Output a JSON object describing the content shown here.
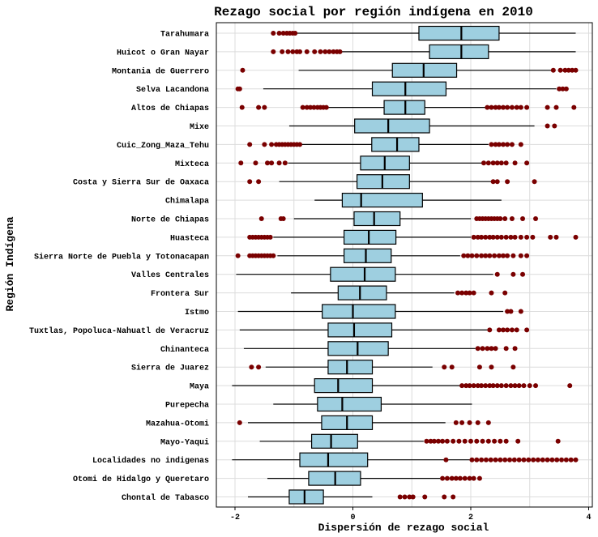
{
  "chart_data": {
    "type": "boxplot",
    "orientation": "horizontal",
    "title": "Rezago social por región indígena en 2010",
    "xlabel": "Dispersión de rezago social",
    "ylabel": "Región Indígena",
    "xlim": [
      -2.3,
      4.05
    ],
    "xticks": [
      -2,
      0,
      2,
      4
    ],
    "xtick_labels": [
      "-2",
      "0",
      "2",
      "4"
    ],
    "grid": true,
    "colors": {
      "box_fill": "#9ecfe0",
      "outlier": "#7a0000",
      "grid": "#dcdcdc",
      "frame": "#000000"
    },
    "series": [
      {
        "name": "Tarahumara",
        "whisker_low": -0.95,
        "q1": 1.12,
        "median": 1.84,
        "q3": 2.48,
        "whisker_high": 3.78,
        "outliers": [
          -1.35,
          -1.25,
          -1.18,
          -1.12,
          -1.07,
          -1.02,
          -0.98
        ]
      },
      {
        "name": "Huicot o Gran Nayar",
        "whisker_low": -0.2,
        "q1": 1.3,
        "median": 1.84,
        "q3": 2.3,
        "whisker_high": 3.78,
        "outliers": [
          -1.35,
          -1.2,
          -1.1,
          -1.02,
          -0.95,
          -0.9,
          -0.78,
          -0.65,
          -0.55,
          -0.47,
          -0.4,
          -0.33,
          -0.27,
          -0.22
        ]
      },
      {
        "name": "Montania de Guerrero",
        "whisker_low": -0.92,
        "q1": 0.67,
        "median": 1.2,
        "q3": 1.76,
        "whisker_high": 3.4,
        "outliers": [
          -1.87,
          3.4,
          3.52,
          3.6,
          3.66,
          3.72,
          3.78
        ]
      },
      {
        "name": "Selva Lacandona",
        "whisker_low": -1.52,
        "q1": 0.33,
        "median": 0.89,
        "q3": 1.58,
        "whisker_high": 3.45,
        "outliers": [
          -1.95,
          -1.92,
          3.5,
          3.56,
          3.62
        ]
      },
      {
        "name": "Altos de Chiapas",
        "whisker_low": -0.8,
        "q1": 0.53,
        "median": 0.89,
        "q3": 1.22,
        "whisker_high": 2.25,
        "outliers": [
          -1.88,
          -1.6,
          -1.5,
          -0.85,
          -0.78,
          -0.72,
          -0.66,
          -0.6,
          -0.55,
          -0.5,
          -0.45,
          2.28,
          2.35,
          2.42,
          2.48,
          2.55,
          2.62,
          2.7,
          2.78,
          2.85,
          2.95,
          3.3,
          3.45,
          3.75
        ]
      },
      {
        "name": "Mixe",
        "whisker_low": -1.08,
        "q1": 0.03,
        "median": 0.6,
        "q3": 1.3,
        "whisker_high": 3.08,
        "outliers": [
          3.3,
          3.42
        ]
      },
      {
        "name": "Cuic_Zong_Maza_Tehu",
        "whisker_low": -0.88,
        "q1": 0.32,
        "median": 0.75,
        "q3": 1.12,
        "whisker_high": 2.3,
        "outliers": [
          -1.75,
          -1.5,
          -1.38,
          -1.3,
          -1.25,
          -1.2,
          -1.15,
          -1.1,
          -1.05,
          -1.0,
          -0.95,
          -0.9,
          2.35,
          2.42,
          2.48,
          2.55,
          2.62,
          2.7,
          2.85
        ]
      },
      {
        "name": "Mixteca",
        "whisker_low": -1.1,
        "q1": 0.13,
        "median": 0.54,
        "q3": 0.96,
        "whisker_high": 2.2,
        "outliers": [
          -1.9,
          -1.65,
          -1.45,
          -1.38,
          -1.25,
          -1.15,
          2.22,
          2.3,
          2.38,
          2.45,
          2.52,
          2.6,
          2.75,
          2.95
        ]
      },
      {
        "name": "Costa y Sierra Sur de Oaxaca",
        "whisker_low": -1.25,
        "q1": 0.07,
        "median": 0.5,
        "q3": 0.96,
        "whisker_high": 2.35,
        "outliers": [
          -1.75,
          -1.6,
          2.38,
          2.45,
          2.62,
          3.08
        ]
      },
      {
        "name": "Chimalapa",
        "whisker_low": -0.65,
        "q1": -0.18,
        "median": 0.14,
        "q3": 1.18,
        "whisker_high": 2.52,
        "outliers": []
      },
      {
        "name": "Norte de Chiapas",
        "whisker_low": -1.0,
        "q1": 0.02,
        "median": 0.36,
        "q3": 0.8,
        "whisker_high": 2.0,
        "outliers": [
          -1.55,
          -1.22,
          -1.18,
          2.1,
          2.15,
          2.2,
          2.25,
          2.3,
          2.35,
          2.4,
          2.45,
          2.5,
          2.58,
          2.7,
          2.88,
          3.1
        ]
      },
      {
        "name": "Huasteca",
        "whisker_low": -1.35,
        "q1": -0.15,
        "median": 0.27,
        "q3": 0.73,
        "whisker_high": 2.0,
        "outliers": [
          -1.75,
          -1.7,
          -1.65,
          -1.6,
          -1.55,
          -1.5,
          -1.45,
          -1.4,
          2.05,
          2.12,
          2.18,
          2.25,
          2.32,
          2.38,
          2.45,
          2.52,
          2.6,
          2.68,
          2.75,
          2.85,
          2.95,
          3.05,
          3.35,
          3.45,
          3.78
        ]
      },
      {
        "name": "Sierra Norte de Puebla y Totonacapan",
        "whisker_low": -1.28,
        "q1": -0.15,
        "median": 0.22,
        "q3": 0.65,
        "whisker_high": 1.82,
        "outliers": [
          -1.95,
          -1.75,
          -1.7,
          -1.65,
          -1.6,
          -1.55,
          -1.5,
          -1.45,
          -1.4,
          -1.35,
          1.88,
          1.95,
          2.02,
          2.1,
          2.18,
          2.25,
          2.32,
          2.4,
          2.48,
          2.55,
          2.62,
          2.72,
          2.85,
          2.95
        ]
      },
      {
        "name": "Valles Centrales",
        "whisker_low": -1.98,
        "q1": -0.38,
        "median": 0.2,
        "q3": 0.72,
        "whisker_high": 2.38,
        "outliers": [
          2.45,
          2.72,
          2.88
        ]
      },
      {
        "name": "Frontera Sur",
        "whisker_low": -1.05,
        "q1": -0.25,
        "median": 0.12,
        "q3": 0.57,
        "whisker_high": 1.72,
        "outliers": [
          1.78,
          1.85,
          1.92,
          1.98,
          2.05,
          2.35,
          2.58
        ]
      },
      {
        "name": "Istmo",
        "whisker_low": -1.95,
        "q1": -0.52,
        "median": 0.0,
        "q3": 0.72,
        "whisker_high": 2.55,
        "outliers": [
          2.62,
          2.68,
          2.85
        ]
      },
      {
        "name": "Tuxtlas, Popoluca-Nahuatl de Veracruz",
        "whisker_low": -1.92,
        "q1": -0.42,
        "median": 0.02,
        "q3": 0.66,
        "whisker_high": 2.28,
        "outliers": [
          2.32,
          2.48,
          2.55,
          2.62,
          2.7,
          2.78,
          2.95
        ]
      },
      {
        "name": "Chinanteca",
        "whisker_low": -1.85,
        "q1": -0.42,
        "median": 0.08,
        "q3": 0.6,
        "whisker_high": 2.08,
        "outliers": [
          2.12,
          2.2,
          2.28,
          2.35,
          2.42,
          2.6,
          2.75
        ]
      },
      {
        "name": "Sierra de Juarez",
        "whisker_low": -1.48,
        "q1": -0.42,
        "median": -0.1,
        "q3": 0.33,
        "whisker_high": 1.35,
        "outliers": [
          -1.72,
          -1.6,
          1.55,
          1.68,
          2.15,
          2.35,
          2.72
        ]
      },
      {
        "name": "Maya",
        "whisker_low": -2.05,
        "q1": -0.65,
        "median": -0.25,
        "q3": 0.33,
        "whisker_high": 1.82,
        "outliers": [
          1.85,
          1.92,
          1.98,
          2.05,
          2.12,
          2.18,
          2.25,
          2.32,
          2.38,
          2.45,
          2.52,
          2.6,
          2.68,
          2.75,
          2.82,
          2.9,
          3.0,
          3.1,
          3.68
        ]
      },
      {
        "name": "Purepecha",
        "whisker_low": -1.35,
        "q1": -0.6,
        "median": -0.18,
        "q3": 0.48,
        "whisker_high": 2.02,
        "outliers": []
      },
      {
        "name": "Mazahua-Otomi",
        "whisker_low": -1.78,
        "q1": -0.53,
        "median": -0.1,
        "q3": 0.33,
        "whisker_high": 1.57,
        "outliers": [
          -1.92,
          1.75,
          1.85,
          1.98,
          2.12,
          2.3
        ]
      },
      {
        "name": "Mayo-Yaqui",
        "whisker_low": -1.58,
        "q1": -0.7,
        "median": -0.37,
        "q3": 0.08,
        "whisker_high": 1.2,
        "outliers": [
          1.25,
          1.32,
          1.38,
          1.45,
          1.52,
          1.6,
          1.7,
          1.8,
          1.9,
          2.0,
          2.1,
          2.2,
          2.3,
          2.4,
          2.5,
          2.6,
          2.8,
          3.48
        ]
      },
      {
        "name": "Localidades no indigenas",
        "whisker_low": -2.05,
        "q1": -0.9,
        "median": -0.42,
        "q3": 0.25,
        "whisker_high": 2.0,
        "outliers": [
          1.58,
          2.02,
          2.1,
          2.18,
          2.26,
          2.34,
          2.42,
          2.5,
          2.58,
          2.66,
          2.74,
          2.82,
          2.9,
          2.98,
          3.06,
          3.14,
          3.22,
          3.3,
          3.38,
          3.46,
          3.54,
          3.62,
          3.7,
          3.78
        ]
      },
      {
        "name": "Otomi de Hidalgo y Queretaro",
        "whisker_low": -1.45,
        "q1": -0.75,
        "median": -0.3,
        "q3": 0.13,
        "whisker_high": 1.48,
        "outliers": [
          1.52,
          1.6,
          1.68,
          1.75,
          1.82,
          1.9,
          1.98,
          2.05,
          2.15
        ]
      },
      {
        "name": "Chontal de Tabasco",
        "whisker_low": -1.78,
        "q1": -1.08,
        "median": -0.82,
        "q3": -0.5,
        "whisker_high": 0.33,
        "outliers": [
          0.8,
          0.88,
          0.96,
          1.02,
          1.22,
          1.55,
          1.7
        ]
      }
    ]
  }
}
